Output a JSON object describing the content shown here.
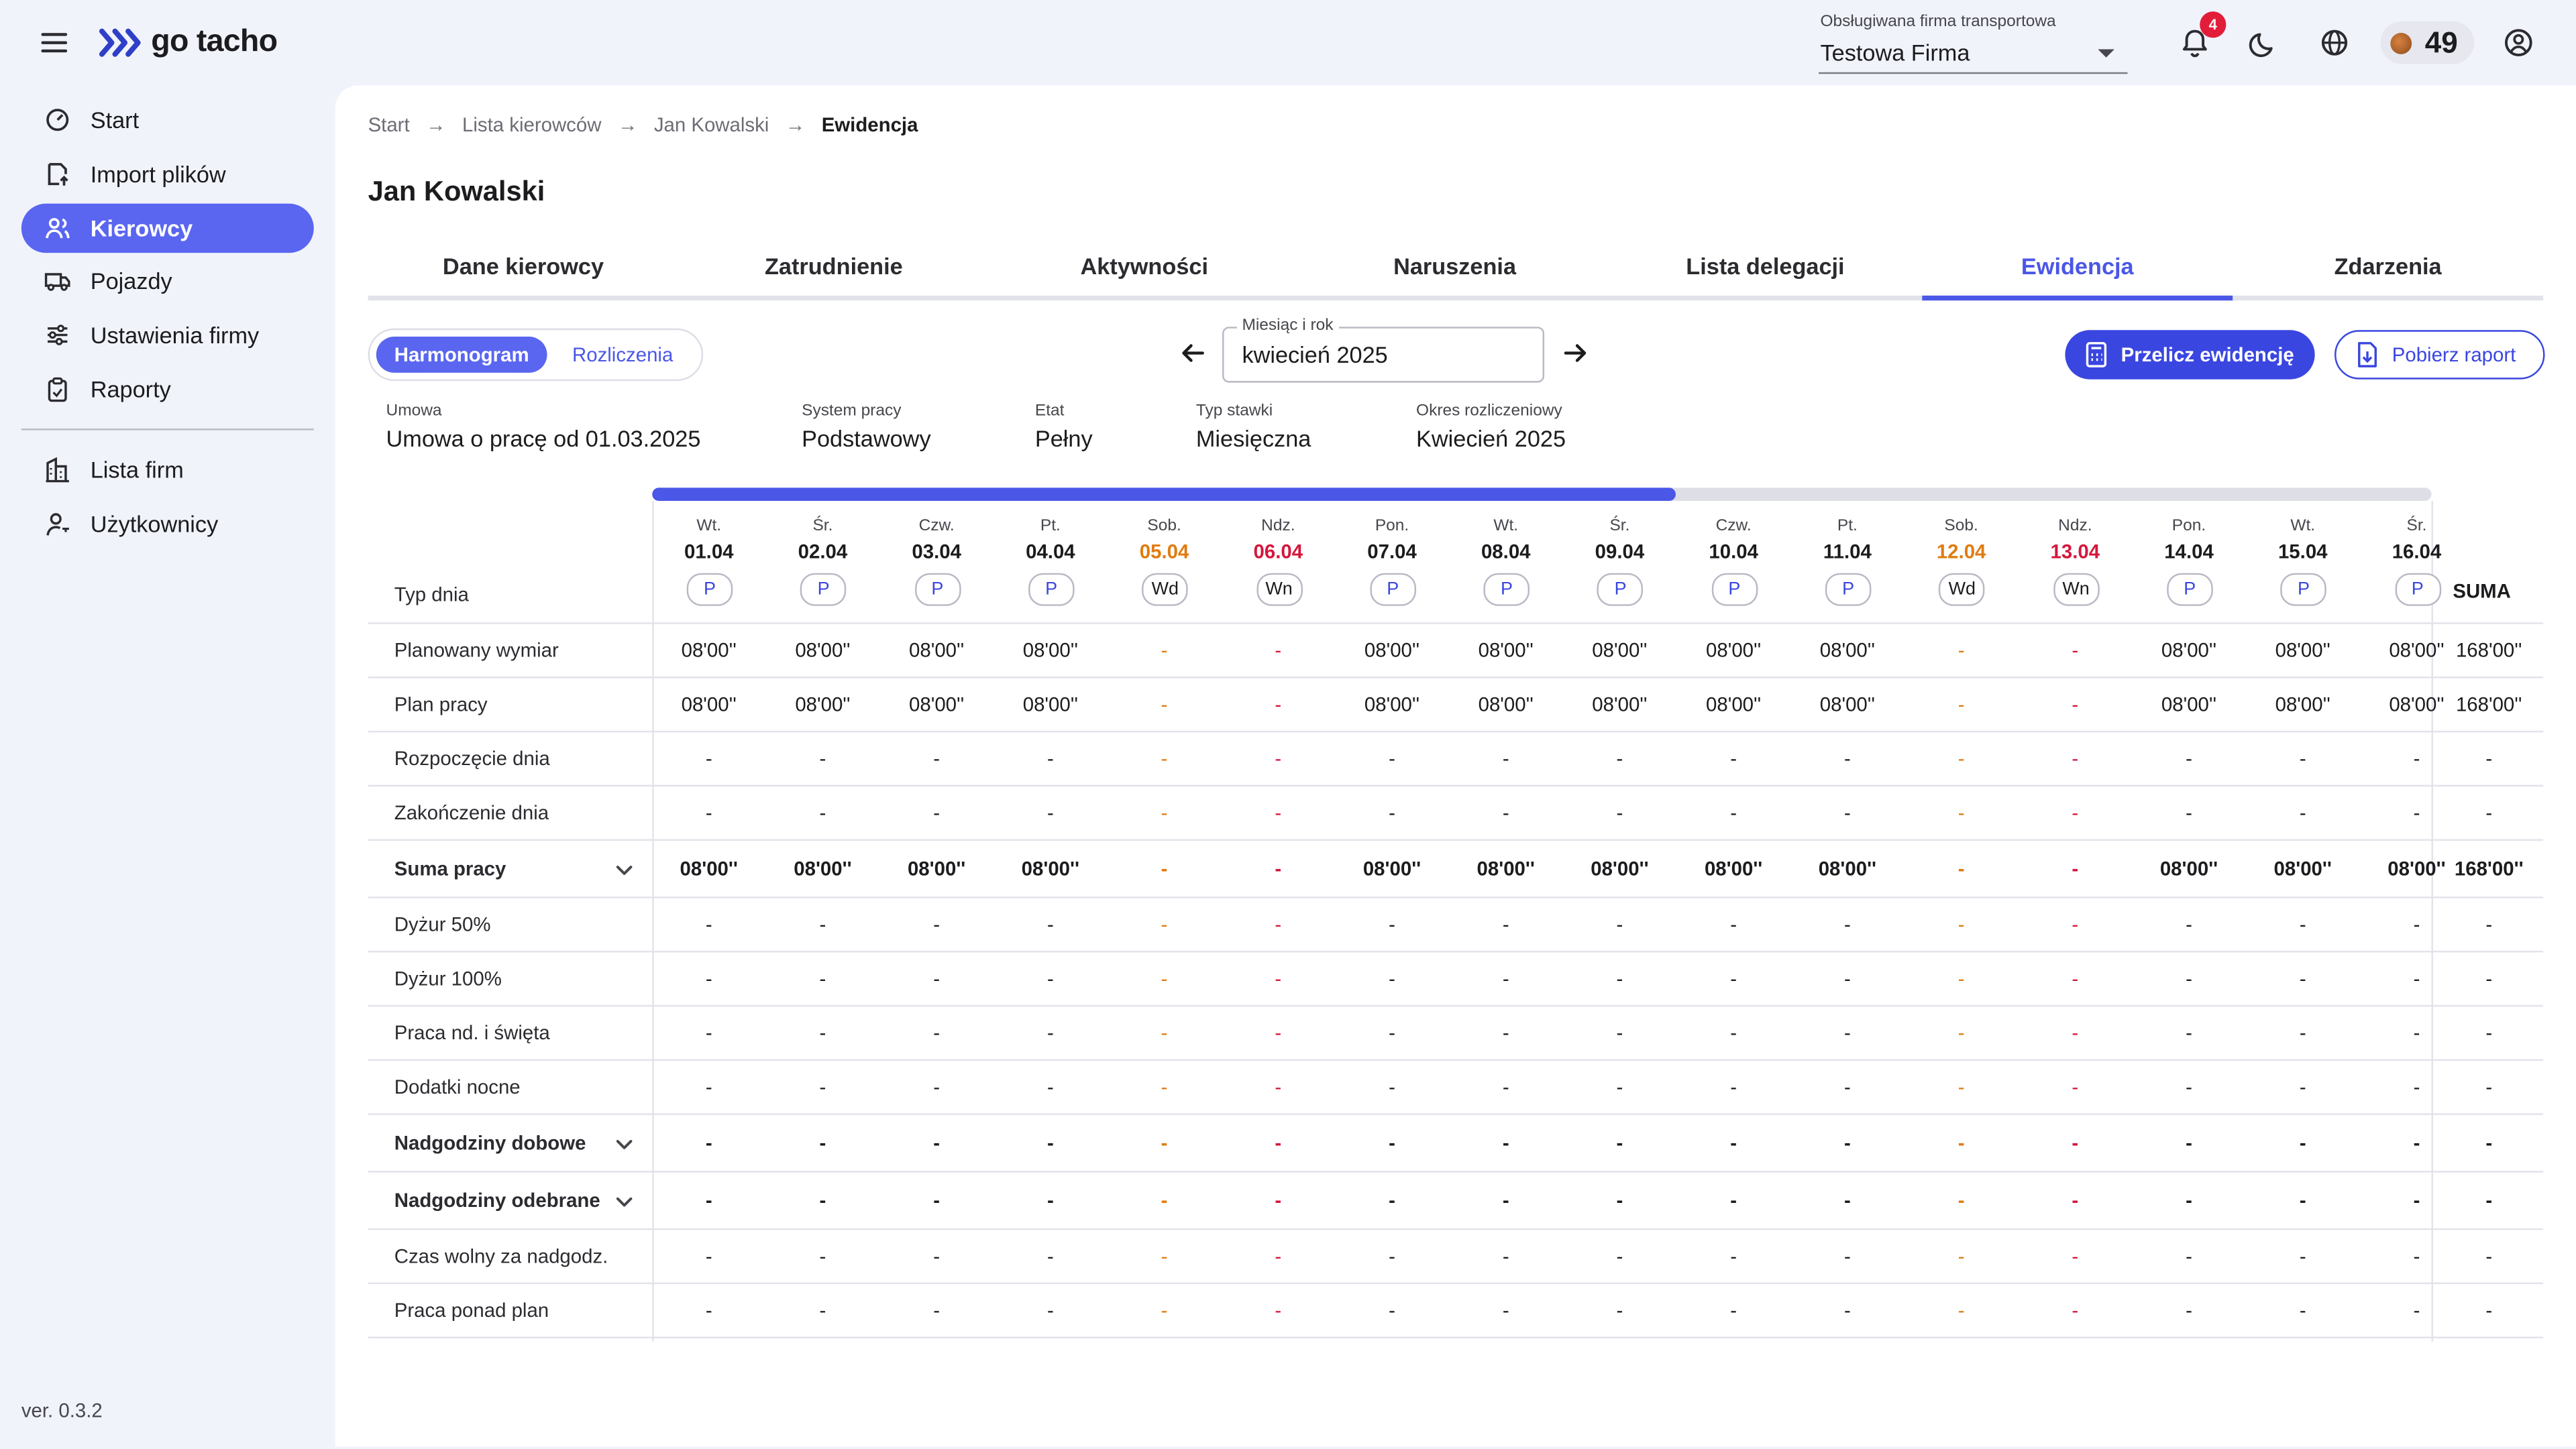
{
  "brand": {
    "name": "go tacho"
  },
  "header": {
    "company_label": "Obsługiwana firma transportowa",
    "company_value": "Testowa Firma",
    "notifications_count": "4",
    "coins": "49"
  },
  "sidebar": {
    "items": [
      {
        "label": "Start",
        "icon": "gauge-icon"
      },
      {
        "label": "Import plików",
        "icon": "file-import-icon"
      },
      {
        "label": "Kierowcy",
        "icon": "users-icon"
      },
      {
        "label": "Pojazdy",
        "icon": "truck-icon"
      },
      {
        "label": "Ustawienia firmy",
        "icon": "sliders-icon"
      },
      {
        "label": "Raporty",
        "icon": "clipboard-icon"
      },
      {
        "label": "Lista firm",
        "icon": "building-icon"
      },
      {
        "label": "Użytkownicy",
        "icon": "user-key-icon"
      }
    ],
    "version": "ver. 0.3.2"
  },
  "breadcrumb": [
    "Start",
    "Lista kierowców",
    "Jan Kowalski",
    "Ewidencja"
  ],
  "page": {
    "title": "Jan Kowalski"
  },
  "tabs": [
    "Dane kierowcy",
    "Zatrudnienie",
    "Aktywności",
    "Naruszenia",
    "Lista delegacji",
    "Ewidencja",
    "Zdarzenia"
  ],
  "active_tab": "Ewidencja",
  "toggle": {
    "on": "Harmonogram",
    "off": "Rozliczenia"
  },
  "month": {
    "label": "Miesiąc i rok",
    "value": "kwiecień 2025"
  },
  "actions": {
    "recalc": "Przelicz ewidencję",
    "download": "Pobierz raport"
  },
  "meta": [
    {
      "label": "Umowa",
      "value": "Umowa o pracę od 01.03.2025"
    },
    {
      "label": "System pracy",
      "value": "Podstawowy"
    },
    {
      "label": "Etat",
      "value": "Pełny"
    },
    {
      "label": "Typ stawki",
      "value": "Miesięczna"
    },
    {
      "label": "Okres rozliczeniowy",
      "value": "Kwiecień 2025"
    }
  ],
  "scroll_progress": 0.575,
  "table": {
    "type_label": "Typ dnia",
    "suma_label": "SUMA",
    "days": [
      {
        "name": "Wt.",
        "date": "01.04",
        "type": "P",
        "kind": "work"
      },
      {
        "name": "Śr.",
        "date": "02.04",
        "type": "P",
        "kind": "work"
      },
      {
        "name": "Czw.",
        "date": "03.04",
        "type": "P",
        "kind": "work"
      },
      {
        "name": "Pt.",
        "date": "04.04",
        "type": "P",
        "kind": "work"
      },
      {
        "name": "Sob.",
        "date": "05.04",
        "type": "Wd",
        "kind": "sat"
      },
      {
        "name": "Ndz.",
        "date": "06.04",
        "type": "Wn",
        "kind": "sun"
      },
      {
        "name": "Pon.",
        "date": "07.04",
        "type": "P",
        "kind": "work"
      },
      {
        "name": "Wt.",
        "date": "08.04",
        "type": "P",
        "kind": "work"
      },
      {
        "name": "Śr.",
        "date": "09.04",
        "type": "P",
        "kind": "work"
      },
      {
        "name": "Czw.",
        "date": "10.04",
        "type": "P",
        "kind": "work"
      },
      {
        "name": "Pt.",
        "date": "11.04",
        "type": "P",
        "kind": "work"
      },
      {
        "name": "Sob.",
        "date": "12.04",
        "type": "Wd",
        "kind": "sat"
      },
      {
        "name": "Ndz.",
        "date": "13.04",
        "type": "Wn",
        "kind": "sun"
      },
      {
        "name": "Pon.",
        "date": "14.04",
        "type": "P",
        "kind": "work"
      },
      {
        "name": "Wt.",
        "date": "15.04",
        "type": "P",
        "kind": "work"
      },
      {
        "name": "Śr.",
        "date": "16.04",
        "type": "P",
        "kind": "work"
      }
    ],
    "rows": [
      {
        "label": "Planowany wymiar",
        "bold": false,
        "expand": false,
        "work": "08'00''",
        "off": "-",
        "sum": "168'00''"
      },
      {
        "label": "Plan pracy",
        "bold": false,
        "expand": false,
        "work": "08'00''",
        "off": "-",
        "sum": "168'00''"
      },
      {
        "label": "Rozpoczęcie dnia",
        "bold": false,
        "expand": false,
        "work": "-",
        "off": "-",
        "sum": "-"
      },
      {
        "label": "Zakończenie dnia",
        "bold": false,
        "expand": false,
        "work": "-",
        "off": "-",
        "sum": "-"
      },
      {
        "label": "Suma pracy",
        "bold": true,
        "expand": true,
        "work": "08'00''",
        "off": "-",
        "sum": "168'00''"
      },
      {
        "label": "Dyżur 50%",
        "bold": false,
        "expand": false,
        "work": "-",
        "off": "-",
        "sum": "-"
      },
      {
        "label": "Dyżur 100%",
        "bold": false,
        "expand": false,
        "work": "-",
        "off": "-",
        "sum": "-"
      },
      {
        "label": "Praca nd. i święta",
        "bold": false,
        "expand": false,
        "work": "-",
        "off": "-",
        "sum": "-"
      },
      {
        "label": "Dodatki nocne",
        "bold": false,
        "expand": false,
        "work": "-",
        "off": "-",
        "sum": "-"
      },
      {
        "label": "Nadgodziny dobowe",
        "bold": true,
        "expand": true,
        "work": "-",
        "off": "-",
        "sum": "-"
      },
      {
        "label": "Nadgodziny odebrane",
        "bold": true,
        "expand": true,
        "work": "-",
        "off": "-",
        "sum": "-"
      },
      {
        "label": "Czas wolny za nadgodz.",
        "bold": false,
        "expand": false,
        "work": "-",
        "off": "-",
        "sum": "-"
      },
      {
        "label": "Praca ponad plan",
        "bold": false,
        "expand": false,
        "work": "-",
        "off": "-",
        "sum": "-"
      }
    ]
  }
}
